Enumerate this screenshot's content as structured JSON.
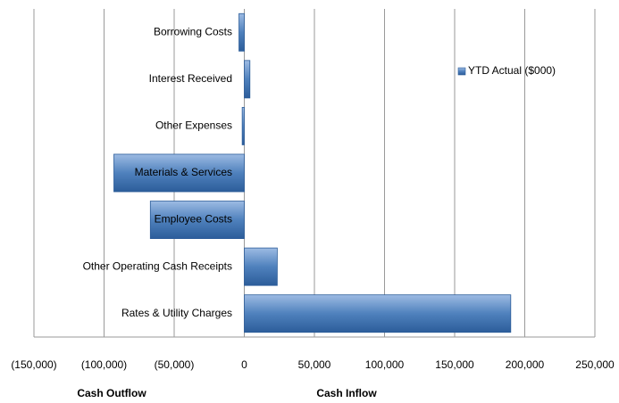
{
  "chart_data": {
    "type": "bar",
    "orientation": "horizontal",
    "categories": [
      "Borrowing Costs",
      "Interest Received",
      "Other Expenses",
      "Materials & Services",
      "Employee Costs",
      "Other Operating Cash Receipts",
      "Rates & Utility Charges"
    ],
    "series": [
      {
        "name": "YTD Actual ($000)",
        "color": "#4f81bd",
        "values": [
          -3800,
          4000,
          -1500,
          -93000,
          -67000,
          23500,
          190000
        ]
      }
    ],
    "xlim": [
      -150000,
      250000
    ],
    "xticks": [
      {
        "value": -150000,
        "label": "(150,000)"
      },
      {
        "value": -100000,
        "label": "(100,000)"
      },
      {
        "value": -50000,
        "label": "(50,000)"
      },
      0,
      {
        "value": 50000,
        "label": "50,000"
      },
      {
        "value": 100000,
        "label": "100,000"
      },
      {
        "value": 150000,
        "label": "150,000"
      },
      {
        "value": 200000,
        "label": "200,000"
      },
      {
        "value": 250000,
        "label": "250,000"
      }
    ],
    "grid": true,
    "legend": "upper right",
    "annotations": [
      "Cash Outflow",
      "Cash Inflow"
    ]
  }
}
